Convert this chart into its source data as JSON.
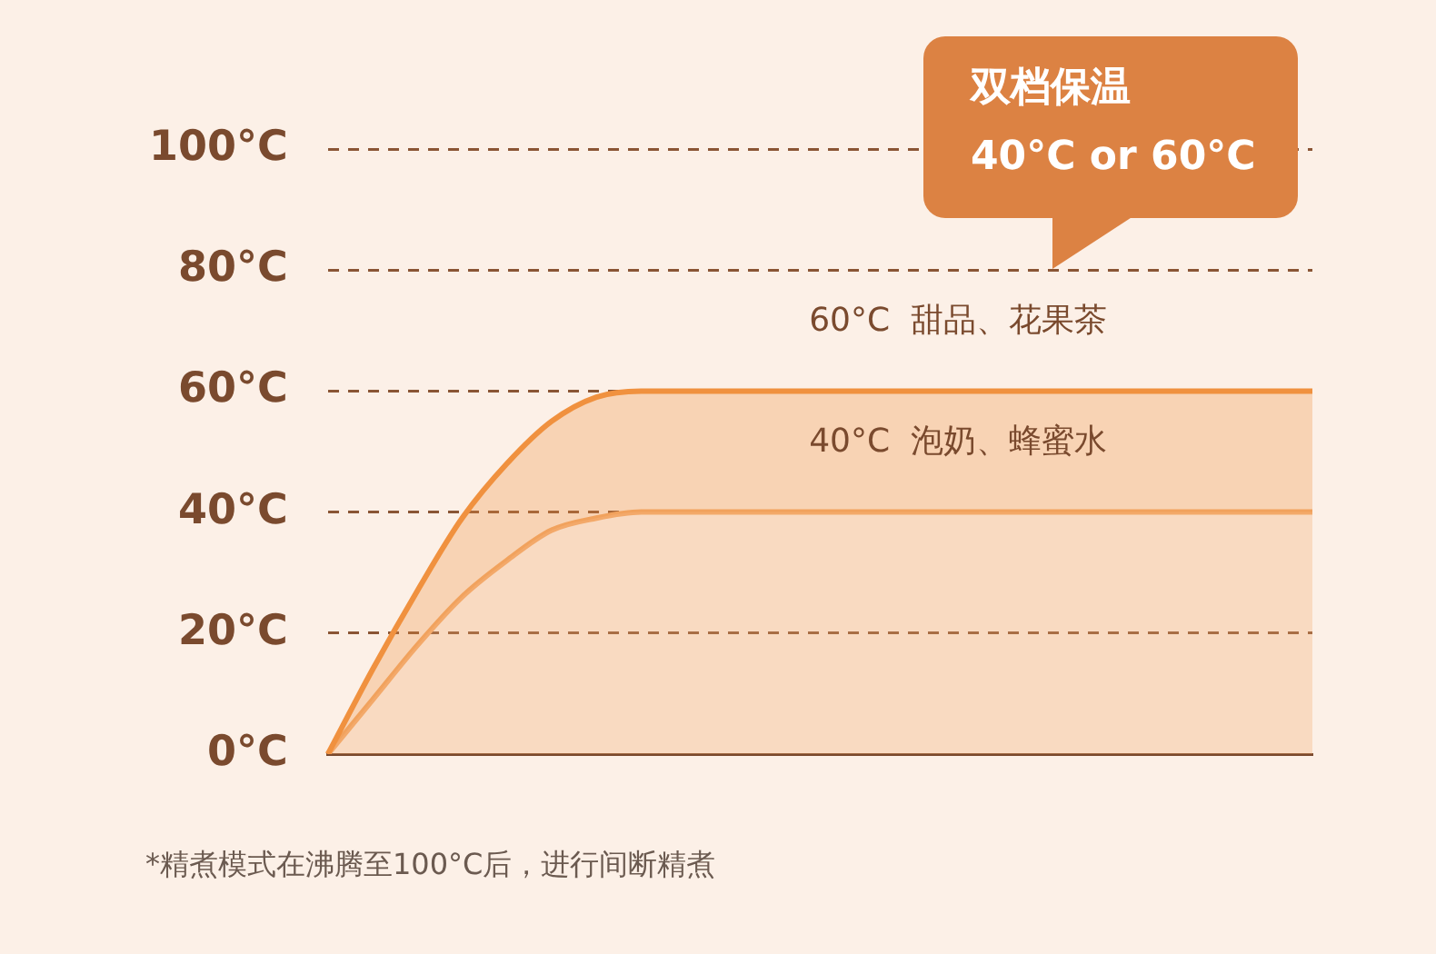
{
  "chart_data": {
    "type": "area",
    "categories": [
      null,
      null,
      null,
      null,
      null,
      null,
      null,
      null,
      null,
      null,
      null,
      null,
      null,
      null,
      null,
      null,
      null,
      null,
      null,
      null,
      null,
      null,
      null
    ],
    "series": [
      {
        "color": "#f0913f",
        "values": [
          0,
          14,
          27,
          39,
          48,
          55,
          59,
          60,
          60,
          60,
          60,
          60,
          60,
          60,
          60,
          60,
          60,
          60,
          60,
          60,
          60,
          60,
          60
        ]
      },
      {
        "color": "#f3a96a",
        "values": [
          0,
          9,
          18,
          26,
          32,
          37,
          39,
          40,
          40,
          40,
          40,
          40,
          40,
          40,
          40,
          40,
          40,
          40,
          40,
          40,
          40,
          40,
          40
        ]
      }
    ],
    "ylim": [
      0,
      100
    ],
    "yticks": [
      {
        "value": 0,
        "label": "0°C"
      },
      {
        "value": 20,
        "label": "20°C"
      },
      {
        "value": 40,
        "label": "40°C"
      },
      {
        "value": 60,
        "label": "60°C"
      },
      {
        "value": 80,
        "label": "80°C"
      },
      {
        "value": 100,
        "label": "100°C"
      }
    ],
    "grid": "y",
    "line_style": "solid",
    "tick_labels": "y",
    "annotations": [
      "双档保温",
      "40°C or 60°C",
      {
        "text": "60°C  甜品、花果茶",
        "y": 60
      },
      {
        "text": "40°C  泡奶、蜂蜜水",
        "y": 40
      },
      "*精煮模式在沸腾至100°C后，进行间断精煮"
    ]
  }
}
